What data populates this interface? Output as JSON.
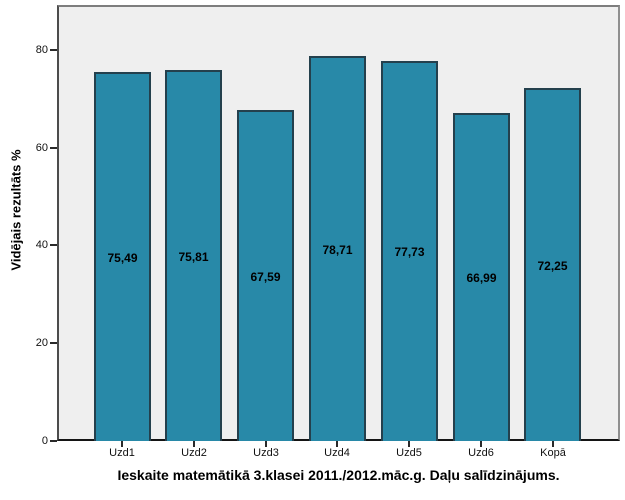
{
  "chart_data": {
    "type": "bar",
    "title": "Ieskaite matemātikā 3.klasei 2011./2012.māc.g. Daļu salīdzinājums.",
    "ylabel": "Vidējais rezultāts %",
    "xlabel": "",
    "categories": [
      "Uzd1",
      "Uzd2",
      "Uzd3",
      "Uzd4",
      "Uzd5",
      "Uzd6",
      "Kopā"
    ],
    "values": [
      75.49,
      75.81,
      67.59,
      78.71,
      77.73,
      66.99,
      72.25
    ],
    "value_labels": [
      "75,49",
      "75,81",
      "67,59",
      "78,71",
      "77,73",
      "66,99",
      "72,25"
    ],
    "y_ticks": [
      0,
      20,
      40,
      60,
      80
    ],
    "ylim": [
      0,
      89
    ],
    "grid": false,
    "legend_position": "none",
    "bar_color": "#2889a8",
    "bar_border_color": "#24404d",
    "plot_background": "#efefef",
    "label_color": "#000000"
  }
}
